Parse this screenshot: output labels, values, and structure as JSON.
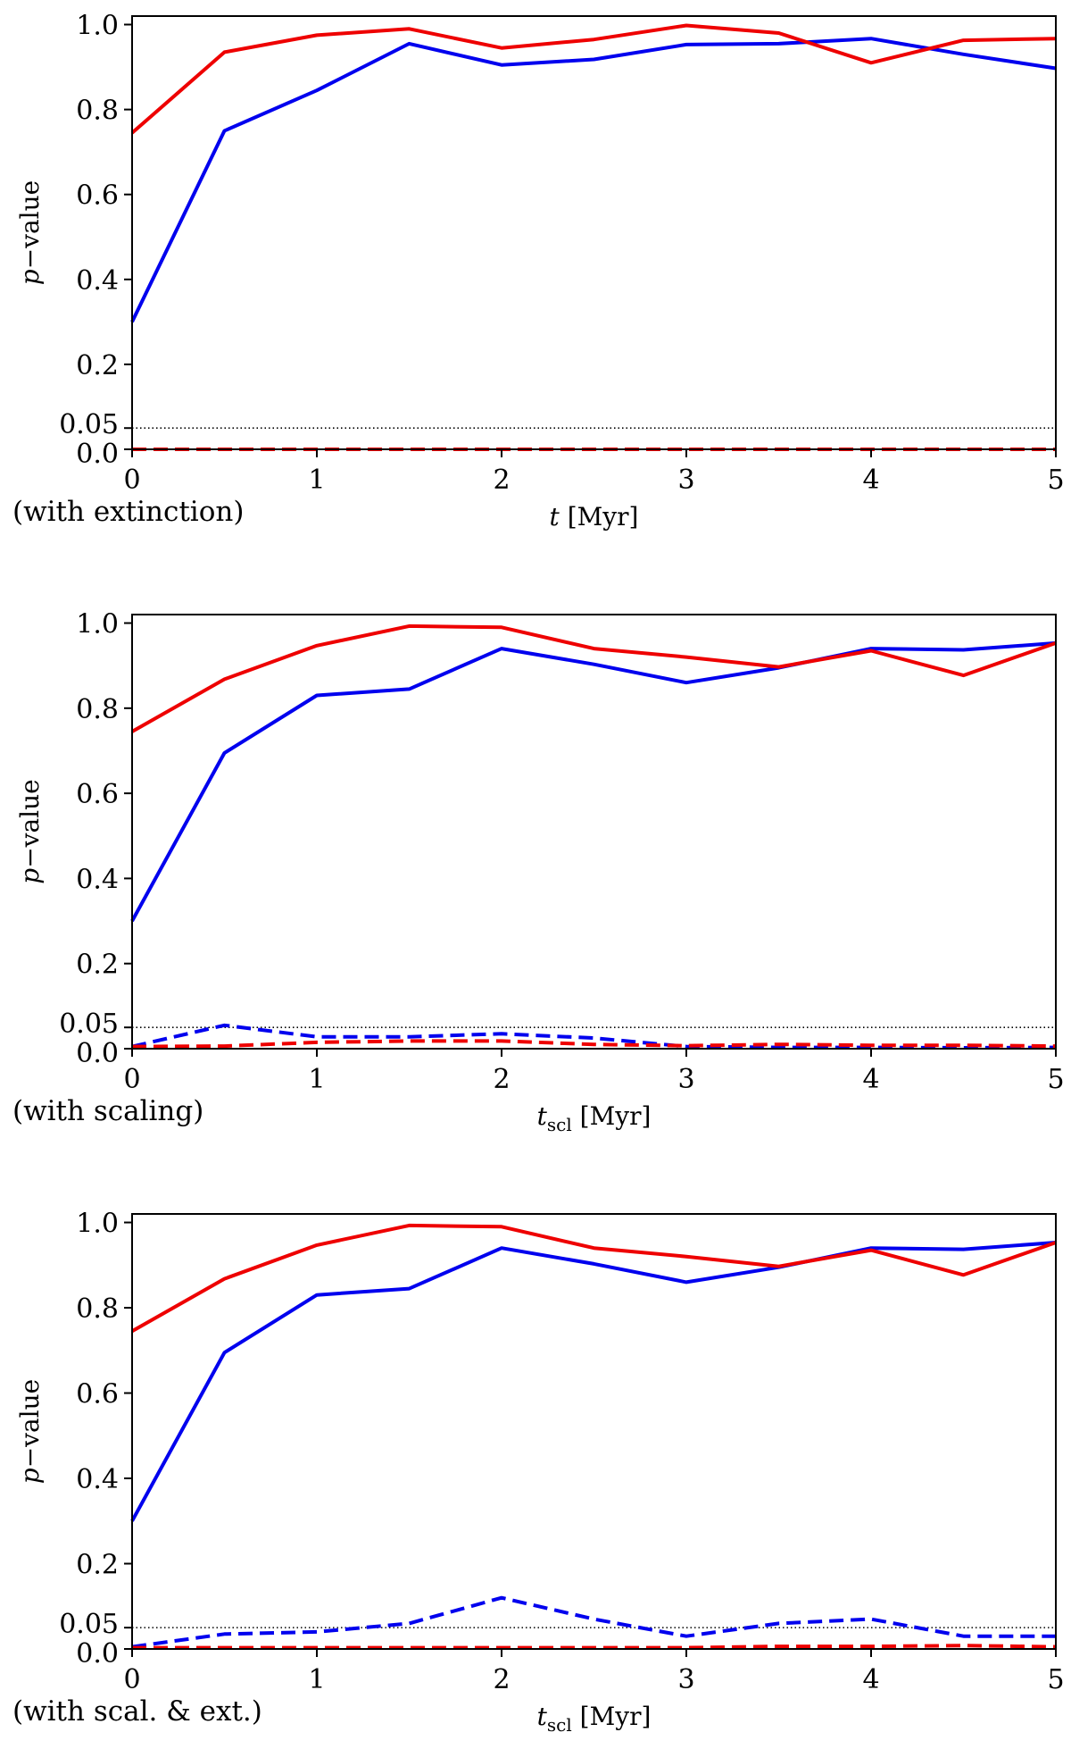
{
  "chart_data": [
    {
      "type": "line",
      "note": "(with extinction)",
      "xlabel_italic": "t",
      "xlabel_sub": "",
      "xlabel_unit": " [Myr]",
      "ylabel_italic": "p",
      "ylabel_rest": "−value",
      "xlim": [
        0,
        5
      ],
      "ylim": [
        0,
        1.02
      ],
      "xticks": [
        0,
        1,
        2,
        3,
        4,
        5
      ],
      "xtick_labels": [
        "0",
        "1",
        "2",
        "3",
        "4",
        "5"
      ],
      "yticks": [
        0.0,
        0.05,
        0.2,
        0.4,
        0.6,
        0.8,
        1.0
      ],
      "ytick_labels": [
        "0.0",
        "0.05",
        "0.2",
        "0.4",
        "0.6",
        "0.8",
        "1.0"
      ],
      "threshold": 0.05,
      "x": [
        0,
        0.5,
        1,
        1.5,
        2,
        2.5,
        3,
        3.5,
        4,
        4.5,
        5
      ],
      "series": [
        {
          "name": "blue-solid",
          "color": "#0000ee",
          "style": "solid",
          "values": [
            0.3,
            0.75,
            0.845,
            0.955,
            0.905,
            0.918,
            0.953,
            0.955,
            0.967,
            0.93,
            0.897
          ]
        },
        {
          "name": "red-solid",
          "color": "#ee0000",
          "style": "solid",
          "values": [
            0.745,
            0.935,
            0.975,
            0.99,
            0.945,
            0.965,
            0.998,
            0.98,
            0.91,
            0.963,
            0.967
          ]
        },
        {
          "name": "blue-dashed",
          "color": "#0000ee",
          "style": "dashed",
          "values": [
            0.0,
            0.0,
            0.0,
            0.0,
            0.0,
            0.0,
            0.0,
            0.0,
            0.0,
            0.0,
            0.0
          ]
        },
        {
          "name": "red-dashed",
          "color": "#ee0000",
          "style": "dashed",
          "values": [
            0.0,
            0.0,
            0.0,
            0.0,
            0.0,
            0.0,
            0.0,
            0.0,
            0.0,
            0.0,
            0.0
          ]
        }
      ]
    },
    {
      "type": "line",
      "note": "(with scaling)",
      "xlabel_italic": "t",
      "xlabel_sub": "scl",
      "xlabel_unit": " [Myr]",
      "ylabel_italic": "p",
      "ylabel_rest": "−value",
      "xlim": [
        0,
        5
      ],
      "ylim": [
        0,
        1.02
      ],
      "xticks": [
        0,
        1,
        2,
        3,
        4,
        5
      ],
      "xtick_labels": [
        "0",
        "1",
        "2",
        "3",
        "4",
        "5"
      ],
      "yticks": [
        0.0,
        0.05,
        0.2,
        0.4,
        0.6,
        0.8,
        1.0
      ],
      "ytick_labels": [
        "0.0",
        "0.05",
        "0.2",
        "0.4",
        "0.6",
        "0.8",
        "1.0"
      ],
      "threshold": 0.05,
      "x": [
        0,
        0.5,
        1,
        1.5,
        2,
        2.5,
        3,
        3.5,
        4,
        4.5,
        5
      ],
      "series": [
        {
          "name": "blue-solid",
          "color": "#0000ee",
          "style": "solid",
          "values": [
            0.3,
            0.695,
            0.83,
            0.845,
            0.94,
            0.903,
            0.86,
            0.895,
            0.94,
            0.937,
            0.953
          ]
        },
        {
          "name": "red-solid",
          "color": "#ee0000",
          "style": "solid",
          "values": [
            0.745,
            0.868,
            0.947,
            0.993,
            0.99,
            0.94,
            0.92,
            0.897,
            0.935,
            0.877,
            0.953
          ]
        },
        {
          "name": "blue-dashed",
          "color": "#0000ee",
          "style": "dashed",
          "values": [
            0.005,
            0.055,
            0.028,
            0.028,
            0.035,
            0.025,
            0.005,
            0.003,
            0.003,
            0.002,
            0.003
          ]
        },
        {
          "name": "red-dashed",
          "color": "#ee0000",
          "style": "dashed",
          "values": [
            0.005,
            0.006,
            0.015,
            0.018,
            0.018,
            0.01,
            0.007,
            0.01,
            0.008,
            0.008,
            0.006
          ]
        }
      ]
    },
    {
      "type": "line",
      "note": "(with scal. & ext.)",
      "xlabel_italic": "t",
      "xlabel_sub": "scl",
      "xlabel_unit": " [Myr]",
      "ylabel_italic": "p",
      "ylabel_rest": "−value",
      "xlim": [
        0,
        5
      ],
      "ylim": [
        0,
        1.02
      ],
      "xticks": [
        0,
        1,
        2,
        3,
        4,
        5
      ],
      "xtick_labels": [
        "0",
        "1",
        "2",
        "3",
        "4",
        "5"
      ],
      "yticks": [
        0.0,
        0.05,
        0.2,
        0.4,
        0.6,
        0.8,
        1.0
      ],
      "ytick_labels": [
        "0.0",
        "0.05",
        "0.2",
        "0.4",
        "0.6",
        "0.8",
        "1.0"
      ],
      "threshold": 0.05,
      "x": [
        0,
        0.5,
        1,
        1.5,
        2,
        2.5,
        3,
        3.5,
        4,
        4.5,
        5
      ],
      "series": [
        {
          "name": "blue-solid",
          "color": "#0000ee",
          "style": "solid",
          "values": [
            0.3,
            0.695,
            0.83,
            0.845,
            0.94,
            0.903,
            0.86,
            0.895,
            0.94,
            0.937,
            0.953
          ]
        },
        {
          "name": "red-solid",
          "color": "#ee0000",
          "style": "solid",
          "values": [
            0.745,
            0.868,
            0.947,
            0.993,
            0.99,
            0.94,
            0.92,
            0.897,
            0.935,
            0.877,
            0.953
          ]
        },
        {
          "name": "blue-dashed",
          "color": "#0000ee",
          "style": "dashed",
          "values": [
            0.005,
            0.035,
            0.04,
            0.06,
            0.12,
            0.07,
            0.03,
            0.06,
            0.07,
            0.03,
            0.03
          ]
        },
        {
          "name": "red-dashed",
          "color": "#ee0000",
          "style": "dashed",
          "values": [
            0.003,
            0.003,
            0.003,
            0.003,
            0.003,
            0.003,
            0.003,
            0.006,
            0.006,
            0.008,
            0.005
          ]
        }
      ]
    }
  ]
}
